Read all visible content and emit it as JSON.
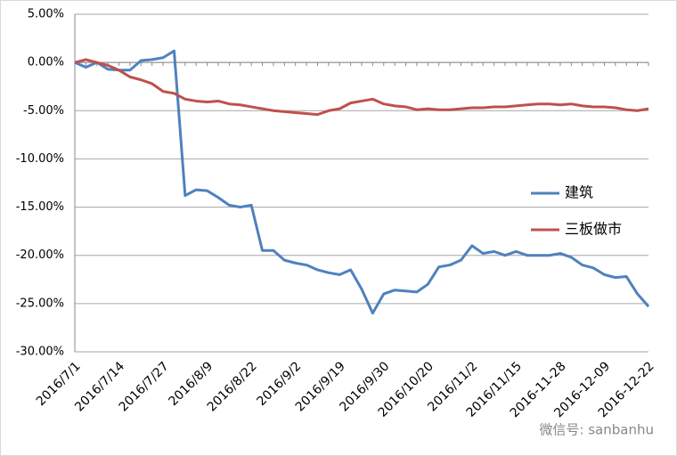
{
  "chart_data": {
    "type": "line",
    "categories": [
      "2016/7/1",
      null,
      null,
      null,
      "2016/7/14",
      null,
      null,
      null,
      "2016/7/27",
      null,
      null,
      null,
      "2016/8/9",
      null,
      null,
      null,
      "2016/8/22",
      null,
      null,
      null,
      "2016/9/2",
      null,
      null,
      null,
      "2016/9/19",
      null,
      null,
      null,
      "2016/9/30",
      null,
      null,
      null,
      "2016/10/20",
      null,
      null,
      null,
      "2016/11/2",
      null,
      null,
      null,
      "2016/11/15",
      null,
      null,
      null,
      "2016-11-28",
      null,
      null,
      null,
      "2016-12-09",
      null,
      null,
      null,
      "2016-12-22"
    ],
    "series": [
      {
        "name": "建筑",
        "color": "#4f81bd",
        "values": [
          0,
          -0.5,
          0,
          -0.7,
          -0.8,
          -0.8,
          0.2,
          0.3,
          0.5,
          1.2,
          -13.8,
          -13.2,
          -13.3,
          -14.0,
          -14.8,
          -15.0,
          -14.8,
          -19.5,
          -19.5,
          -20.5,
          -20.8,
          -21.0,
          -21.5,
          -21.8,
          -22.0,
          -21.5,
          -23.5,
          -26.0,
          -24.0,
          -23.6,
          -23.7,
          -23.8,
          -23.0,
          -21.2,
          -21.0,
          -20.5,
          -19.0,
          -19.8,
          -19.6,
          -20.0,
          -19.6,
          -20.0,
          -20.0,
          -20.0,
          -19.8,
          -20.2,
          -21.0,
          -21.3,
          -22.0,
          -22.3,
          -22.2,
          -24.0,
          -25.3
        ]
      },
      {
        "name": "三板做市",
        "color": "#c0504d",
        "values": [
          0,
          0.3,
          0,
          -0.3,
          -0.8,
          -1.5,
          -1.8,
          -2.2,
          -3.0,
          -3.2,
          -3.8,
          -4.0,
          -4.1,
          -4.0,
          -4.3,
          -4.4,
          -4.6,
          -4.8,
          -5.0,
          -5.1,
          -5.2,
          -5.3,
          -5.4,
          -5.0,
          -4.8,
          -4.2,
          -4.0,
          -3.8,
          -4.3,
          -4.5,
          -4.6,
          -4.9,
          -4.8,
          -4.9,
          -4.9,
          -4.8,
          -4.7,
          -4.7,
          -4.6,
          -4.6,
          -4.5,
          -4.4,
          -4.3,
          -4.3,
          -4.4,
          -4.3,
          -4.5,
          -4.6,
          -4.6,
          -4.7,
          -4.9,
          -5.0,
          -4.8
        ]
      }
    ],
    "ylim": [
      -30,
      5
    ],
    "yticks": [
      {
        "value": 5,
        "label": "5.00%"
      },
      {
        "value": 0,
        "label": "0.00%"
      },
      {
        "value": -5,
        "label": "-5.00%"
      },
      {
        "value": -10,
        "label": "-10.00%"
      },
      {
        "value": -15,
        "label": "-15.00%"
      },
      {
        "value": -20,
        "label": "-20.00%"
      },
      {
        "value": -25,
        "label": "-25.00%"
      },
      {
        "value": -30,
        "label": "-30.00%"
      }
    ],
    "grid": true,
    "legend": "right",
    "watermark": "微信号: sanbanhu"
  }
}
